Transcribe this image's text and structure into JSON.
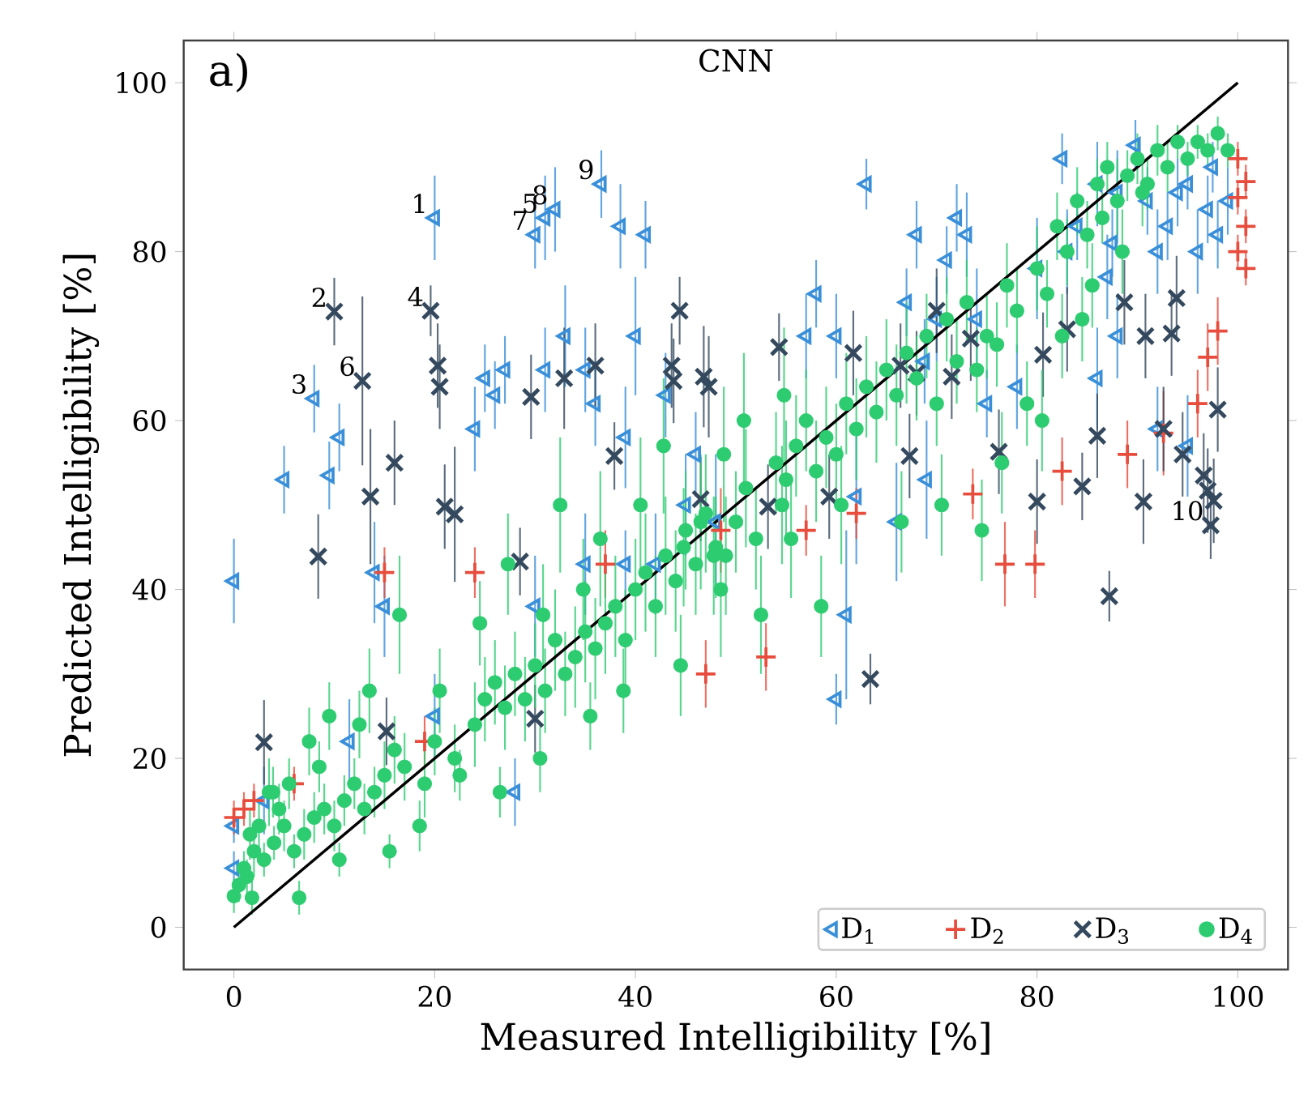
{
  "chart_data": {
    "type": "scatter",
    "title": "CNN",
    "xlabel": "Measured Intelligibility [%]",
    "ylabel": "Predicted Intelligibility [%]",
    "xlim": [
      -5,
      105
    ],
    "ylim": [
      -5,
      105
    ],
    "xticks": [
      0,
      20,
      40,
      60,
      80,
      100
    ],
    "yticks": [
      0,
      20,
      40,
      60,
      80,
      100
    ],
    "legend": "bottom right",
    "annotations": [
      "a)",
      {
        "text": "1",
        "x": 20,
        "y": 84
      },
      {
        "text": "2",
        "x": 10,
        "y": 72.9
      },
      {
        "text": "3",
        "x": 8,
        "y": 62.6
      },
      {
        "text": "4",
        "x": 19.6,
        "y": 73
      },
      {
        "text": "5",
        "x": 31,
        "y": 84
      },
      {
        "text": "6",
        "x": 12.8,
        "y": 64.7
      },
      {
        "text": "7",
        "x": 30,
        "y": 82
      },
      {
        "text": "8",
        "x": 32,
        "y": 85
      },
      {
        "text": "9",
        "x": 36.6,
        "y": 88
      },
      {
        "text": "10",
        "x": 97.3,
        "y": 47.6
      }
    ],
    "series": [
      {
        "name": "D$_{1}$",
        "color": "#3a8fd9",
        "marker": "triangle",
        "x": [
          0,
          5,
          8,
          9.5,
          10.5,
          14,
          15,
          20,
          30,
          31,
          32,
          36.6,
          25,
          24,
          26,
          27,
          31,
          33,
          35,
          36,
          39,
          40,
          41,
          38.5,
          42,
          39,
          43,
          45,
          46,
          57,
          58,
          60,
          61,
          60,
          62,
          63,
          67,
          68.8,
          68,
          70,
          71,
          72,
          73,
          74,
          75,
          78,
          80,
          82.5,
          83,
          84,
          86,
          87.5,
          87,
          88,
          89.8,
          91,
          92,
          93,
          94,
          95,
          96,
          97,
          98,
          99,
          97.5,
          86,
          88,
          92,
          95,
          69,
          66,
          30,
          35,
          48,
          28,
          20,
          3,
          0,
          0,
          11.5
        ],
        "values": [
          41,
          53,
          62.6,
          53.5,
          58,
          42,
          38,
          84,
          82,
          84,
          85,
          88,
          65,
          59,
          63,
          66,
          66,
          70,
          66,
          62,
          58,
          70,
          82,
          83,
          43,
          43,
          63,
          50,
          56,
          70,
          75,
          70,
          37,
          27,
          51,
          88,
          74,
          67,
          82,
          72,
          79,
          84,
          82,
          72,
          62,
          64,
          78,
          91,
          80,
          83,
          88,
          81,
          77,
          87,
          92.6,
          86,
          80,
          83,
          87,
          88,
          80,
          85,
          82,
          86,
          90,
          65,
          70,
          59,
          57,
          53,
          48,
          38,
          43,
          48,
          16,
          25,
          15,
          12,
          7,
          22
        ],
        "errors": [
          5,
          4,
          4,
          4,
          4,
          6,
          6,
          5,
          4,
          5,
          5,
          4,
          4,
          5,
          4,
          4,
          5,
          6,
          5,
          5,
          6,
          7,
          4,
          5,
          6,
          4,
          5,
          6,
          5,
          5,
          4,
          5,
          10,
          3,
          8,
          3,
          4,
          5,
          4,
          5,
          4,
          4,
          5,
          6,
          4,
          5,
          6,
          3,
          5,
          4,
          5,
          4,
          5,
          5,
          3,
          4,
          5,
          4,
          4,
          3,
          5,
          4,
          4,
          4,
          3,
          6,
          5,
          5,
          6,
          7,
          7,
          6,
          6,
          8,
          4,
          5,
          4,
          2,
          2,
          5
        ]
      },
      {
        "name": "D$_{2}$",
        "color": "#e74c3c",
        "marker": "plus",
        "x": [
          0,
          1,
          2,
          6,
          15,
          19,
          24,
          37,
          48.5,
          47,
          53,
          57,
          62,
          73.6,
          76.8,
          79.8,
          82.5,
          89,
          92.6,
          96,
          98,
          97,
          100,
          100.8,
          100,
          100.8,
          100,
          100.8
        ],
        "values": [
          13,
          14,
          15,
          17,
          42,
          22,
          42,
          43,
          47,
          30,
          32,
          47,
          49,
          51.3,
          43,
          43,
          54,
          56,
          58.5,
          62,
          70.6,
          67.5,
          91,
          88.3,
          86.4,
          83,
          80,
          78
        ],
        "errors": [
          2,
          2,
          2,
          2,
          3,
          3,
          3,
          4,
          5,
          4,
          4,
          3,
          3,
          3,
          5,
          4,
          4,
          4,
          5,
          4,
          4,
          4,
          2,
          2,
          2,
          2,
          2,
          2
        ]
      },
      {
        "name": "D$_{3}$",
        "color": "#34495e",
        "marker": "cross",
        "x": [
          10,
          19.6,
          12.8,
          13.6,
          16,
          21,
          29.6,
          20.3,
          20.5,
          32.9,
          36,
          37.9,
          43.6,
          44.4,
          43.8,
          46.8,
          47.3,
          46.5,
          54.3,
          53.2,
          59.3,
          61.7,
          66.4,
          67.3,
          70,
          68,
          71.5,
          73.4,
          80.6,
          83,
          88.7,
          90.8,
          93.4,
          93.9,
          98,
          76.2,
          86,
          84.5,
          80,
          90.6,
          92.6,
          94.5,
          96.6,
          97,
          97.6,
          97.3,
          87.2,
          63.4,
          8.4,
          3,
          15.2,
          30,
          28.5,
          22
        ],
        "values": [
          72.9,
          73,
          64.7,
          51,
          55,
          49.8,
          62.8,
          66.5,
          64,
          65,
          66.5,
          55.8,
          66.5,
          73,
          64.7,
          65.2,
          64,
          50.7,
          68.7,
          49.8,
          51,
          68,
          66.5,
          55.8,
          73,
          65.6,
          65.2,
          69.7,
          67.8,
          70.8,
          74,
          70,
          70.3,
          74.5,
          61.3,
          56.3,
          58.2,
          52.2,
          50.4,
          50.4,
          59,
          56,
          53.5,
          51.7,
          50.5,
          47.6,
          39.2,
          29.4,
          43.9,
          21.9,
          23.2,
          24.7,
          43.3,
          48.9
        ],
        "errors": [
          4,
          3,
          10,
          8,
          5,
          5,
          5,
          5,
          5,
          6,
          5,
          4,
          5,
          4,
          5,
          6,
          6,
          5,
          4,
          5,
          5,
          5,
          5,
          5,
          5,
          5,
          5,
          5,
          5,
          5,
          5,
          5,
          5,
          5,
          5,
          5,
          5,
          4,
          5,
          5,
          5,
          5,
          5,
          5,
          5,
          4,
          3,
          3,
          5,
          5,
          4,
          4,
          4,
          8
        ]
      },
      {
        "name": "D$_{4}$",
        "color": "#2ecc71",
        "marker": "circle",
        "x": [
          0,
          0.5,
          1,
          2,
          3,
          1.6,
          2.5,
          4,
          5,
          6,
          7,
          8,
          3.5,
          5.5,
          8.5,
          9,
          10,
          11,
          12,
          13,
          14,
          15,
          16,
          17,
          19,
          20,
          22,
          24,
          25,
          26,
          27,
          28,
          29,
          30,
          31,
          32,
          33,
          34,
          35,
          36,
          37,
          38,
          39,
          40,
          41,
          42,
          43,
          44,
          45,
          46,
          47,
          48,
          49,
          50,
          51,
          52,
          54.6,
          54,
          55,
          56,
          57,
          58,
          59,
          60,
          61,
          62,
          63,
          64,
          65,
          66,
          67,
          68,
          69,
          70,
          71,
          72,
          73,
          74,
          75,
          76,
          77,
          78,
          79,
          80,
          81,
          82,
          83,
          84,
          85,
          86,
          86.5,
          87,
          88,
          89,
          90,
          91,
          92,
          93,
          94,
          95,
          96,
          97,
          98,
          99,
          90.5,
          88.5,
          85.5,
          84.5,
          82.5,
          80.5,
          76.5,
          74.5,
          70.5,
          66.5,
          60.5,
          58.5,
          55.5,
          52.5,
          48.5,
          44.5,
          46.5,
          40.5,
          36.5,
          32.5,
          27.3,
          24.5,
          20.5,
          16.5,
          12.5,
          13.5,
          7.5,
          9.5,
          35.5,
          30.5,
          26.5,
          22.5,
          18.5,
          15.5,
          10.5,
          6.5,
          1.3,
          1.8,
          4.5,
          3.9,
          50.8,
          48.8,
          54.8,
          44.8,
          42.8,
          47.8,
          38.8,
          34.8,
          30.8
        ],
        "values": [
          3.7,
          5,
          7,
          9,
          8,
          11,
          12,
          10,
          12,
          9,
          11,
          13,
          16,
          17,
          19,
          14,
          12,
          15,
          17,
          14,
          16,
          18,
          21,
          19,
          17,
          22,
          20,
          24,
          27,
          29,
          26,
          30,
          27,
          31,
          28,
          34,
          30,
          32,
          35,
          33,
          36,
          38,
          34,
          40,
          42,
          38,
          44,
          41,
          47,
          43,
          49,
          45,
          44,
          48,
          52,
          46,
          50,
          55,
          53,
          57,
          60,
          54,
          58,
          56,
          62,
          59,
          64,
          61,
          66,
          63,
          68,
          65,
          70,
          62,
          72,
          67,
          74,
          66,
          70,
          69,
          76,
          73,
          62,
          78,
          75,
          83,
          80,
          86,
          82,
          88,
          84,
          90,
          86,
          89,
          91,
          88,
          92,
          90,
          93,
          91,
          93,
          92,
          94,
          92,
          87,
          80,
          76,
          72,
          70,
          60,
          55,
          47,
          50,
          48,
          50,
          38,
          46,
          37,
          40,
          31,
          48,
          50,
          46,
          50,
          43,
          36,
          28,
          37,
          24,
          28,
          22,
          25,
          25,
          20,
          16,
          18,
          12,
          9,
          8,
          3.5,
          6,
          3.5,
          14,
          16,
          60,
          56,
          63,
          45,
          57,
          44,
          28,
          40,
          37
        ],
        "errors": [
          2,
          2,
          2,
          3,
          2,
          3,
          3,
          2,
          3,
          2,
          3,
          3,
          4,
          3,
          3,
          3,
          3,
          3,
          3,
          3,
          3,
          4,
          4,
          4,
          4,
          4,
          4,
          5,
          5,
          5,
          5,
          5,
          5,
          5,
          5,
          6,
          5,
          6,
          6,
          6,
          6,
          6,
          6,
          6,
          7,
          6,
          7,
          6,
          7,
          6,
          7,
          6,
          7,
          6,
          7,
          6,
          7,
          6,
          7,
          6,
          6,
          6,
          6,
          6,
          6,
          6,
          6,
          6,
          6,
          6,
          6,
          5,
          5,
          5,
          5,
          5,
          5,
          5,
          5,
          5,
          5,
          5,
          5,
          5,
          4,
          4,
          4,
          4,
          4,
          3,
          3,
          3,
          5,
          3,
          3,
          3,
          3,
          3,
          2,
          2,
          2,
          2,
          2,
          2,
          4,
          5,
          5,
          5,
          5,
          6,
          6,
          6,
          6,
          6,
          7,
          6,
          7,
          7,
          8,
          6,
          8,
          8,
          8,
          8,
          6,
          5,
          5,
          7,
          4,
          5,
          4,
          4,
          4,
          4,
          3,
          3,
          3,
          2,
          2,
          2,
          2,
          2,
          3,
          3,
          8,
          8,
          8,
          7,
          8,
          7,
          5,
          6,
          6
        ]
      },
      {
        "type": "line",
        "color": "#000000",
        "marker": "none",
        "x": [
          0,
          100
        ],
        "values": [
          0,
          100
        ]
      }
    ]
  }
}
